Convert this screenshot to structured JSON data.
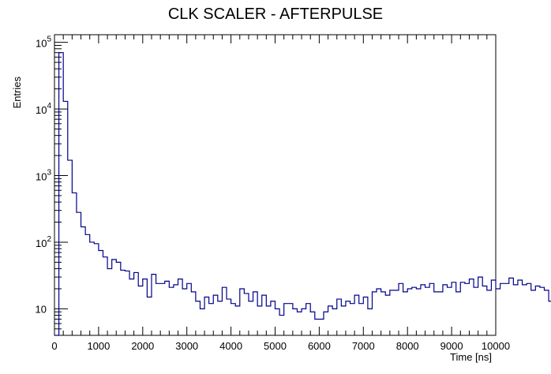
{
  "chart_data": {
    "type": "histogram",
    "title": "CLK SCALER - AFTERPULSE",
    "xlabel": "Time [ns]",
    "ylabel": "Entries",
    "xlim": [
      0,
      10000
    ],
    "ylim": [
      4,
      130000
    ],
    "ylog": true,
    "bin_width": 100,
    "x_ticks": [
      "0",
      "1000",
      "2000",
      "3000",
      "4000",
      "5000",
      "6000",
      "7000",
      "8000",
      "9000",
      "10000"
    ],
    "y_ticks": [
      {
        "base": "10",
        "exp": ""
      },
      {
        "base": "10",
        "exp": "2"
      },
      {
        "base": "10",
        "exp": "3"
      },
      {
        "base": "10",
        "exp": "4"
      },
      {
        "base": "10",
        "exp": "5"
      }
    ],
    "line_color": "#00008b",
    "values": [
      0,
      70000,
      13000,
      1700,
      550,
      280,
      170,
      130,
      100,
      95,
      75,
      60,
      40,
      55,
      50,
      38,
      37,
      28,
      35,
      22,
      28,
      15,
      33,
      24,
      24,
      26,
      21,
      23,
      28,
      20,
      24,
      18,
      13,
      10,
      15,
      12,
      16,
      13,
      21,
      14,
      12,
      11,
      20,
      17,
      13,
      18,
      11,
      16,
      11,
      13,
      10,
      8,
      12,
      12,
      10,
      9,
      10,
      12,
      9,
      7,
      7,
      9,
      11,
      10,
      14,
      11,
      13,
      12,
      16,
      12,
      15,
      10,
      18,
      20,
      18,
      16,
      19,
      19,
      24,
      18,
      20,
      21,
      20,
      23,
      21,
      24,
      18,
      18,
      23,
      21,
      25,
      18,
      25,
      24,
      28,
      21,
      30,
      22,
      19,
      27,
      20,
      24,
      24,
      29,
      23,
      27,
      23,
      24,
      19,
      22,
      21,
      19,
      13,
      21,
      14,
      22,
      19,
      21,
      19,
      23,
      15,
      18,
      16,
      15,
      21,
      20,
      26,
      24,
      20,
      25,
      22,
      18,
      25,
      22,
      25,
      24,
      16,
      20,
      24,
      20,
      23,
      22,
      22,
      26,
      21,
      24,
      25,
      20,
      18,
      25,
      27,
      22,
      20,
      24,
      13,
      17,
      19,
      17,
      20,
      18,
      24,
      25,
      21,
      23,
      18,
      22,
      25,
      26,
      22,
      26,
      23,
      29,
      30,
      24,
      26,
      27,
      20,
      25,
      31,
      28,
      21,
      25,
      23,
      22,
      27,
      20,
      25,
      23,
      24,
      21,
      23,
      19,
      24,
      24,
      25,
      26,
      22,
      21,
      24,
      25
    ]
  }
}
